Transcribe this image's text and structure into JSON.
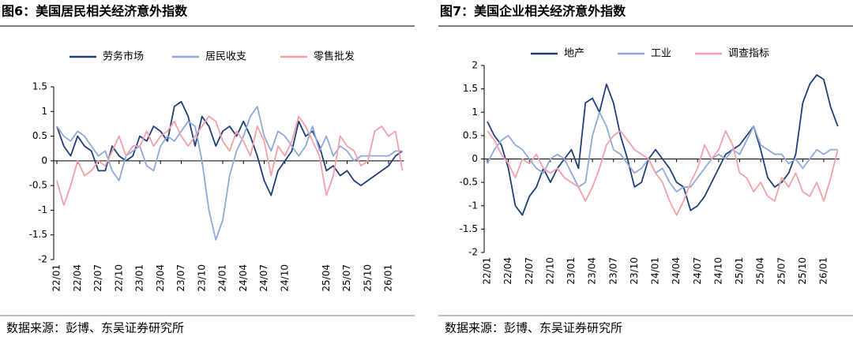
{
  "chart_data": [
    {
      "type": "line",
      "title": "图6：美国居民相关经济意外指数",
      "source": "数据来源：彭博、东吴证券研究所",
      "categories": [
        "22/01",
        null,
        null,
        "22/04",
        null,
        null,
        "22/07",
        null,
        null,
        "22/10",
        null,
        null,
        "23/01",
        null,
        null,
        "23/04",
        null,
        null,
        "23/07",
        null,
        null,
        "23/10",
        null,
        null,
        "24/01",
        null,
        null,
        "24/04",
        null,
        null,
        "24/07",
        null,
        null,
        "24/10",
        null,
        null,
        null,
        null,
        null,
        "25/04",
        null,
        null,
        "25/07",
        null,
        null,
        "25/10",
        null,
        null,
        "26/01",
        null,
        null
      ],
      "series": [
        {
          "name": "劳务市场",
          "color": "#1f3f7a",
          "values": [
            0.7,
            0.3,
            0.1,
            0.5,
            0.3,
            0.2,
            -0.2,
            -0.2,
            0.3,
            0.1,
            0,
            0.1,
            0.5,
            0.4,
            0.7,
            0.6,
            0.4,
            1.1,
            1.2,
            0.9,
            0.3,
            0.9,
            0.7,
            0.3,
            0.6,
            0.7,
            0.5,
            0.8,
            0.5,
            0.1,
            -0.4,
            -0.7,
            -0.2,
            0,
            0.2,
            0.8,
            0.5,
            0.6,
            0.3,
            -0.2,
            -0.1,
            -0.3,
            -0.2,
            -0.4,
            -0.5,
            -0.4,
            -0.3,
            -0.2,
            -0.1,
            0.1,
            0.2
          ]
        },
        {
          "name": "居民收支",
          "color": "#8fa9d8",
          "values": [
            0.7,
            0.5,
            0.4,
            0.6,
            0.5,
            0.3,
            0.1,
            0.2,
            -0.2,
            -0.4,
            0.1,
            0.2,
            0.3,
            -0.1,
            -0.2,
            0.3,
            0.5,
            0.4,
            0.6,
            0.8,
            0.7,
            0,
            -1.0,
            -1.6,
            -1.2,
            -0.3,
            0.2,
            0.5,
            0.9,
            1.1,
            0.5,
            0.2,
            0.6,
            0.5,
            0.3,
            0.1,
            0.3,
            0.7,
            0.2,
            0.5,
            0.1,
            0.3,
            0.2,
            0,
            0.1,
            0.1,
            0.1,
            0.1,
            0.1,
            0.2,
            0.2
          ]
        },
        {
          "name": "零售批发",
          "color": "#f4a0a8",
          "values": [
            -0.4,
            -0.9,
            -0.5,
            0,
            -0.3,
            -0.2,
            0,
            -0.1,
            0.2,
            0.5,
            0.1,
            0.3,
            0.3,
            0.6,
            0.3,
            0.5,
            0.6,
            0.8,
            0.5,
            0.3,
            0.5,
            0.7,
            0.9,
            0.8,
            0.4,
            0.2,
            0.6,
            0.4,
            0.1,
            0.7,
            0.4,
            -0.3,
            0.3,
            0.1,
            0.4,
            0.9,
            0.7,
            0.4,
            0.1,
            -0.7,
            -0.3,
            0.5,
            0.3,
            0.2,
            -0.1,
            0,
            0.6,
            0.7,
            0.5,
            0.6,
            -0.2
          ]
        }
      ],
      "ylim": [
        -2,
        1.5
      ],
      "yticks": [
        -2,
        -1.5,
        -1,
        -0.5,
        0,
        0.5,
        1,
        1.5
      ]
    },
    {
      "type": "line",
      "title": "图7：美国企业相关经济意外指数",
      "source": "数据来源：彭博、东吴证券研究所",
      "categories": [
        "22/01",
        null,
        null,
        "22/04",
        null,
        null,
        "22/07",
        null,
        null,
        "22/10",
        null,
        null,
        "23/01",
        null,
        null,
        "23/04",
        null,
        null,
        "23/07",
        null,
        null,
        "23/10",
        null,
        null,
        "24/01",
        null,
        null,
        "24/04",
        null,
        null,
        "24/07",
        null,
        null,
        "24/10",
        null,
        null,
        "25/01",
        null,
        null,
        "25/04",
        null,
        null,
        "25/07",
        null,
        null,
        "25/10",
        null,
        null,
        "26/01",
        null,
        null
      ],
      "series": [
        {
          "name": "地产",
          "color": "#1f3f7a",
          "values": [
            0.8,
            0.5,
            0.3,
            -0.2,
            -1.0,
            -1.2,
            -0.8,
            -0.6,
            -0.2,
            -0.5,
            -0.2,
            0,
            0.2,
            -0.2,
            1.2,
            1.3,
            1.0,
            1.6,
            1.2,
            0.5,
            0,
            -0.6,
            -0.5,
            0,
            0.2,
            0,
            -0.2,
            -0.5,
            -0.6,
            -1.1,
            -1.0,
            -0.8,
            -0.5,
            -0.2,
            0.1,
            0.2,
            0.3,
            0.5,
            0.7,
            0.2,
            -0.4,
            -0.6,
            -0.5,
            -0.3,
            0.1,
            1.2,
            1.6,
            1.8,
            1.7,
            1.1,
            0.7
          ]
        },
        {
          "name": "工业",
          "color": "#8fa9d8",
          "values": [
            -0.1,
            0.2,
            0.4,
            0.5,
            0.3,
            0.2,
            0,
            -0.2,
            -0.3,
            0,
            0.1,
            0,
            -0.3,
            -0.6,
            -0.5,
            0.5,
            1.0,
            0.7,
            0.2,
            0.1,
            -0.1,
            -0.3,
            -0.2,
            0,
            -0.3,
            -0.2,
            -0.5,
            -0.7,
            -0.6,
            -0.6,
            -0.4,
            -0.2,
            0,
            0.1,
            0,
            0.2,
            0.1,
            0.4,
            0.7,
            0.3,
            0.2,
            0.1,
            0.1,
            -0.1,
            0,
            -0.2,
            0,
            0.2,
            0.1,
            0.2,
            0.2
          ]
        },
        {
          "name": "调查指标",
          "color": "#f4a0a8",
          "values": [
            0.6,
            0.4,
            0.1,
            -0.1,
            -0.4,
            0,
            -0.1,
            0.1,
            -0.2,
            -0.3,
            -0.2,
            -0.4,
            -0.5,
            -0.6,
            -0.9,
            -0.6,
            -0.2,
            0.3,
            0.5,
            0.6,
            0.4,
            0.2,
            0.1,
            0,
            -0.3,
            -0.5,
            -0.9,
            -1.2,
            -0.9,
            -0.5,
            -0.2,
            0.3,
            0,
            0.2,
            0.6,
            0.3,
            -0.3,
            -0.4,
            -0.7,
            -0.5,
            -0.8,
            -0.9,
            -0.4,
            -0.6,
            -0.3,
            -0.7,
            -0.8,
            -0.5,
            -0.9,
            -0.4,
            0.2
          ]
        }
      ],
      "ylim": [
        -2,
        2
      ],
      "yticks": [
        -2,
        -1.5,
        -1,
        -0.5,
        0,
        0.5,
        1,
        1.5,
        2
      ]
    }
  ]
}
